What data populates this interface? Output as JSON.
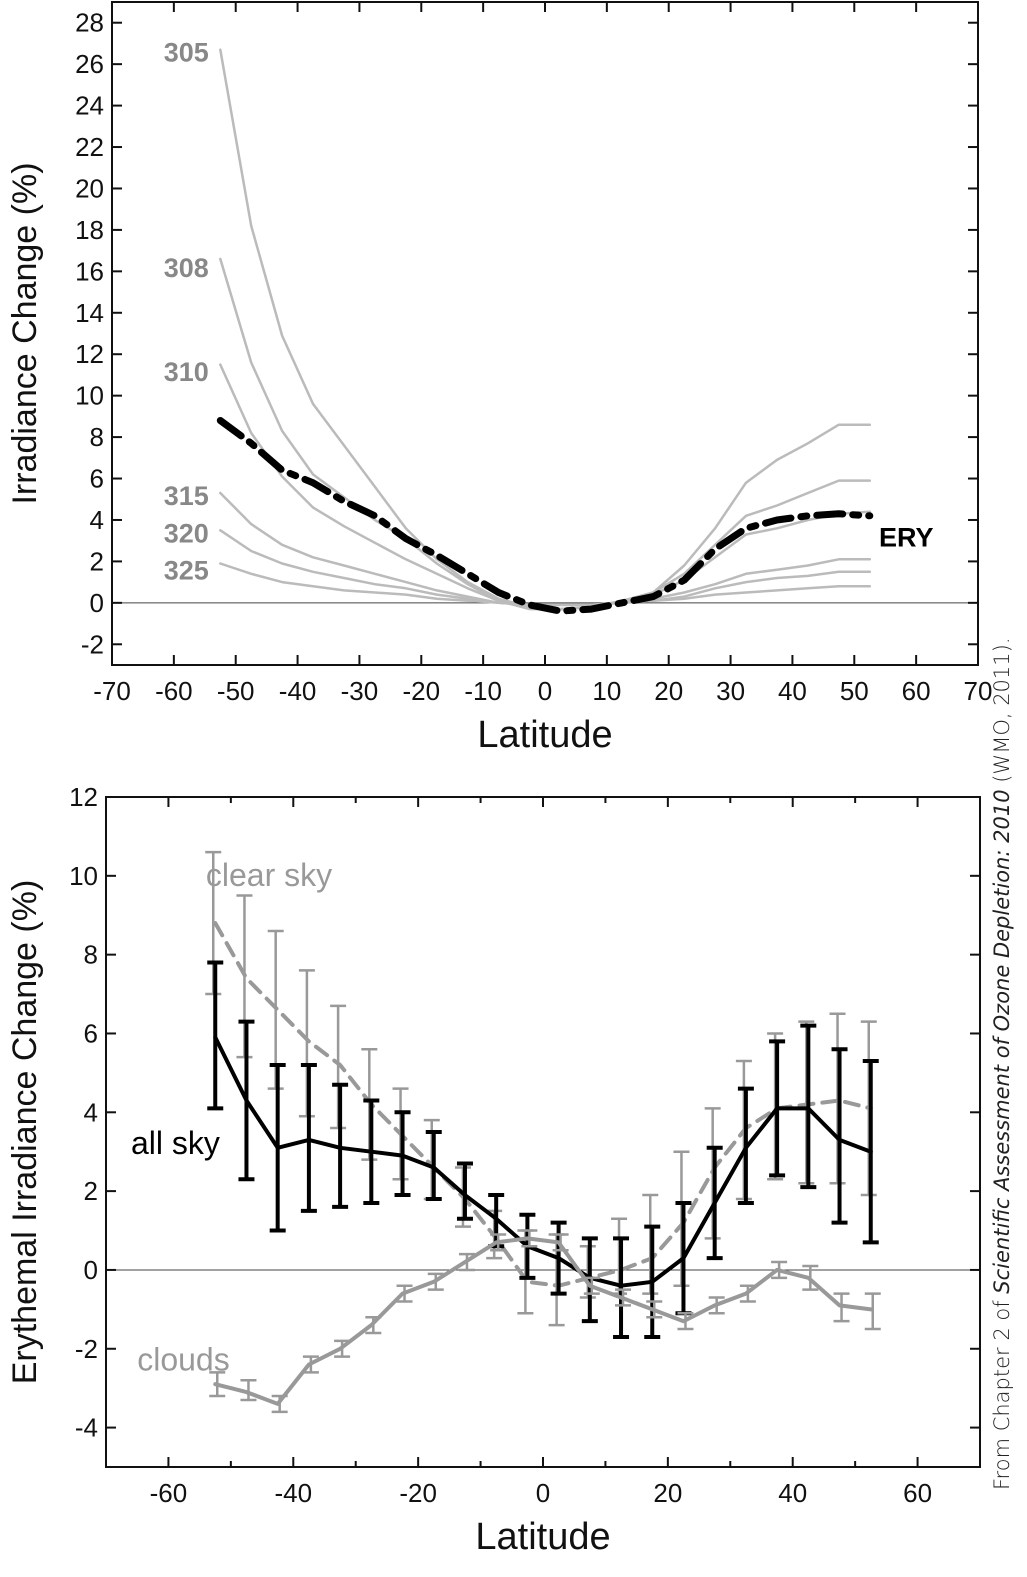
{
  "credit": {
    "prefix": "From Chapter 2 of ",
    "title": "Scientific Assessment of Ozone Depletion: 2010",
    "suffix": " (WMO, 2011)."
  },
  "chart_data": [
    {
      "type": "line",
      "xlabel": "Latitude",
      "ylabel": "Irradiance Change (%)",
      "xlim": [
        -70,
        70
      ],
      "ylim": [
        -3,
        29
      ],
      "xticks": [
        -70,
        -60,
        -50,
        -40,
        -30,
        -20,
        -10,
        0,
        10,
        20,
        30,
        40,
        50,
        60,
        70
      ],
      "yticks": [
        -2,
        0,
        2,
        4,
        6,
        8,
        10,
        12,
        14,
        16,
        18,
        20,
        22,
        24,
        26,
        28
      ],
      "x": [
        -52.5,
        -47.5,
        -42.5,
        -37.5,
        -32.5,
        -27.5,
        -22.5,
        -17.5,
        -12.5,
        -7.5,
        -2.5,
        2.5,
        7.5,
        12.5,
        17.5,
        22.5,
        27.5,
        32.5,
        37.5,
        42.5,
        47.5,
        52.5
      ],
      "series": [
        {
          "name": "305",
          "style": "solid",
          "color": "#bbbbbb",
          "values": [
            26.7,
            18.2,
            12.9,
            9.6,
            7.6,
            5.6,
            3.6,
            2.1,
            1.0,
            0.2,
            -0.2,
            -0.3,
            -0.2,
            0.1,
            0.5,
            1.8,
            3.6,
            5.8,
            6.9,
            7.7,
            8.6,
            8.6
          ]
        },
        {
          "name": "308",
          "style": "solid",
          "color": "#bbbbbb",
          "values": [
            16.6,
            11.6,
            8.3,
            6.2,
            5.1,
            4.0,
            3.1,
            1.9,
            0.9,
            0.1,
            -0.3,
            -0.3,
            -0.2,
            0.1,
            0.5,
            1.4,
            2.8,
            4.2,
            4.7,
            5.3,
            5.9,
            5.9
          ]
        },
        {
          "name": "310",
          "style": "solid",
          "color": "#bbbbbb",
          "values": [
            11.5,
            8.2,
            6.1,
            4.6,
            3.7,
            2.9,
            2.1,
            1.4,
            0.7,
            0.1,
            -0.2,
            -0.3,
            -0.2,
            0.1,
            0.4,
            1.1,
            2.2,
            3.3,
            3.6,
            4.0,
            4.3,
            4.4
          ]
        },
        {
          "name": "315",
          "style": "solid",
          "color": "#bbbbbb",
          "values": [
            5.3,
            3.8,
            2.8,
            2.2,
            1.8,
            1.4,
            1.0,
            0.6,
            0.3,
            0.0,
            -0.1,
            -0.1,
            -0.1,
            0.0,
            0.2,
            0.5,
            0.9,
            1.4,
            1.6,
            1.8,
            2.1,
            2.1
          ]
        },
        {
          "name": "320",
          "style": "solid",
          "color": "#bbbbbb",
          "values": [
            3.5,
            2.5,
            1.9,
            1.5,
            1.2,
            0.9,
            0.7,
            0.4,
            0.2,
            0.0,
            -0.1,
            -0.1,
            -0.1,
            0.0,
            0.1,
            0.3,
            0.7,
            1.0,
            1.2,
            1.3,
            1.5,
            1.5
          ]
        },
        {
          "name": "325",
          "style": "solid",
          "color": "#bbbbbb",
          "values": [
            1.9,
            1.4,
            1.0,
            0.8,
            0.6,
            0.5,
            0.4,
            0.2,
            0.1,
            0.0,
            -0.1,
            -0.1,
            -0.1,
            0.0,
            0.1,
            0.2,
            0.4,
            0.5,
            0.6,
            0.7,
            0.8,
            0.8
          ]
        },
        {
          "name": "ERY",
          "style": "dashdot",
          "color": "#000000",
          "values": [
            8.8,
            7.7,
            6.4,
            5.8,
            4.9,
            4.2,
            3.1,
            2.3,
            1.4,
            0.5,
            -0.1,
            -0.4,
            -0.3,
            0.0,
            0.3,
            1.1,
            2.6,
            3.6,
            4.0,
            4.2,
            4.3,
            4.2
          ]
        }
      ]
    },
    {
      "type": "line",
      "xlabel": "Latitude",
      "ylabel": "Erythemal Irradiance Change (%)",
      "xlim": [
        -70,
        70
      ],
      "ylim": [
        -5,
        12
      ],
      "xticks": [
        -60,
        -40,
        -20,
        0,
        20,
        40,
        60
      ],
      "xticks_minor_step": 10,
      "yticks": [
        -4,
        -2,
        0,
        2,
        4,
        6,
        8,
        10,
        12
      ],
      "x": [
        -52.5,
        -47.5,
        -42.5,
        -37.5,
        -32.5,
        -27.5,
        -22.5,
        -17.5,
        -12.5,
        -7.5,
        -2.5,
        2.5,
        7.5,
        12.5,
        17.5,
        22.5,
        27.5,
        32.5,
        37.5,
        42.5,
        47.5,
        52.5
      ],
      "series": [
        {
          "name": "clear sky",
          "style": "dashed",
          "color": "#999999",
          "values": [
            8.8,
            7.4,
            6.6,
            5.8,
            5.2,
            4.2,
            3.4,
            2.6,
            1.8,
            0.8,
            -0.3,
            -0.4,
            -0.2,
            0.0,
            0.3,
            1.2,
            2.6,
            3.6,
            4.1,
            4.2,
            4.3,
            4.1
          ],
          "low": [
            7.0,
            5.4,
            4.6,
            3.9,
            3.6,
            2.8,
            2.3,
            1.8,
            1.1,
            0.3,
            -1.1,
            -1.4,
            -0.7,
            -0.6,
            -0.6,
            -0.4,
            0.8,
            1.8,
            2.3,
            2.2,
            2.2,
            1.9
          ],
          "high": [
            10.6,
            9.5,
            8.6,
            7.6,
            6.7,
            5.6,
            4.6,
            3.8,
            2.6,
            1.5,
            1.0,
            0.9,
            0.6,
            1.3,
            1.9,
            3.0,
            4.1,
            5.3,
            6.0,
            6.3,
            6.5,
            6.3
          ]
        },
        {
          "name": "all sky",
          "style": "solid",
          "color": "#000000",
          "values": [
            5.9,
            4.3,
            3.1,
            3.3,
            3.1,
            3.0,
            2.9,
            2.6,
            1.9,
            1.3,
            0.6,
            0.3,
            -0.2,
            -0.4,
            -0.3,
            0.3,
            1.7,
            3.1,
            4.1,
            4.1,
            3.3,
            3.0
          ],
          "low": [
            4.1,
            2.3,
            1.0,
            1.5,
            1.6,
            1.7,
            1.9,
            1.8,
            1.3,
            0.6,
            -0.2,
            -0.6,
            -1.3,
            -1.7,
            -1.7,
            -1.1,
            0.3,
            1.7,
            2.4,
            2.1,
            1.2,
            0.7
          ],
          "high": [
            7.8,
            6.3,
            5.2,
            5.2,
            4.7,
            4.3,
            4.0,
            3.5,
            2.7,
            1.9,
            1.4,
            1.2,
            0.8,
            0.8,
            1.1,
            1.7,
            3.1,
            4.6,
            5.8,
            6.2,
            5.6,
            5.3
          ]
        },
        {
          "name": "clouds",
          "style": "solid",
          "color": "#999999",
          "values": [
            -2.9,
            -3.1,
            -3.4,
            -2.4,
            -2.0,
            -1.4,
            -0.6,
            -0.3,
            0.2,
            0.7,
            0.8,
            0.7,
            -0.4,
            -0.7,
            -1.0,
            -1.3,
            -0.9,
            -0.6,
            0.0,
            -0.2,
            -0.9,
            -1.0
          ],
          "low": [
            -3.2,
            -3.3,
            -3.6,
            -2.6,
            -2.2,
            -1.6,
            -0.8,
            -0.5,
            0.0,
            0.5,
            0.6,
            0.5,
            -0.6,
            -0.9,
            -1.2,
            -1.5,
            -1.1,
            -0.8,
            -0.2,
            -0.5,
            -1.3,
            -1.5
          ],
          "high": [
            -2.6,
            -2.8,
            -3.2,
            -2.2,
            -1.8,
            -1.2,
            -0.4,
            -0.1,
            0.4,
            0.9,
            1.0,
            0.9,
            -0.2,
            -0.5,
            -0.8,
            -1.1,
            -0.7,
            -0.4,
            0.2,
            0.1,
            -0.6,
            -0.6
          ]
        }
      ]
    }
  ]
}
